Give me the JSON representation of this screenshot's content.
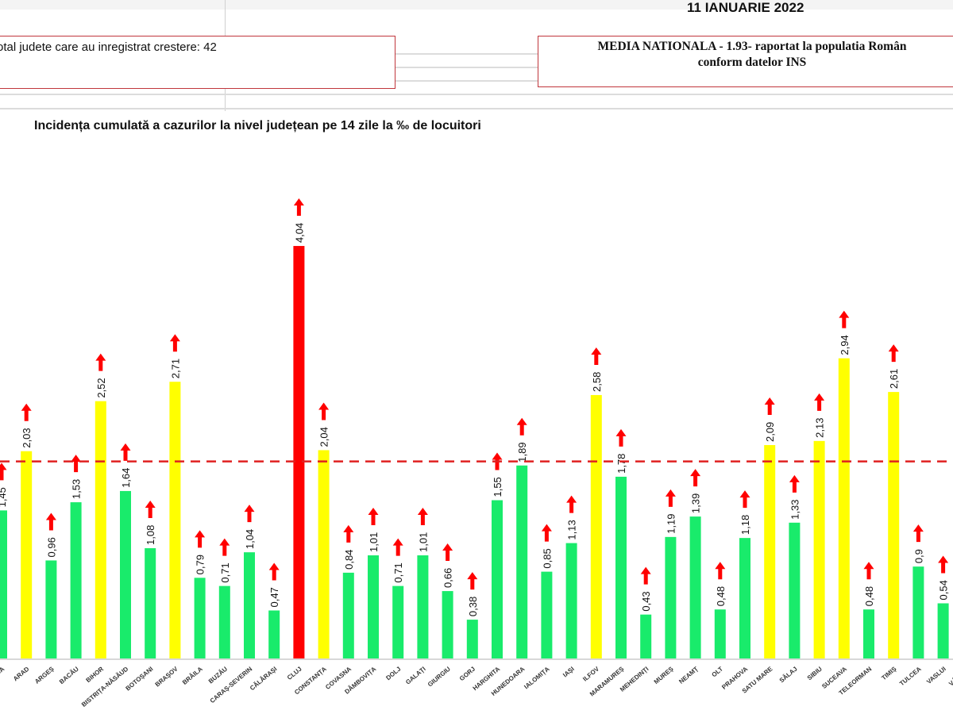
{
  "header": {
    "date": "11 IANUARIE 2022",
    "total_box": "otal judete care au inregistrat crestere: 42",
    "media_box_line1": "MEDIA NATIONALA - 1.93-  raportat la populatia Român",
    "media_box_line2": "conform datelor INS"
  },
  "colors": {
    "below_average": "#19eb6b",
    "above_average": "#ffff00",
    "maximum": "#ff0000",
    "arrow": "#ff0000",
    "average_line": "#e02020"
  },
  "chart_data": {
    "type": "bar",
    "title": "Incidența cumulată a cazurilor la nivel județean pe 14 zile la ‰ de locuitori",
    "categories": [
      "ALBA",
      "ARAD",
      "ARGEȘ",
      "BACĂU",
      "BIHOR",
      "BISTRIȚA-NĂSĂUD",
      "BOTOȘANI",
      "BRAȘOV",
      "BRĂILA",
      "BUZĂU",
      "CARAȘ-SEVERIN",
      "CĂLĂRAȘI",
      "CLUJ",
      "CONSTANȚA",
      "COVASNA",
      "DÂMBOVIȚA",
      "DOLJ",
      "GALAȚI",
      "GIURGIU",
      "GORJ",
      "HARGHITA",
      "HUNEDOARA",
      "IALOMIȚA",
      "IAȘI",
      "ILFOV",
      "MARAMUREȘ",
      "MEHEDINȚI",
      "MUREȘ",
      "NEAMȚ",
      "OLT",
      "PRAHOVA",
      "SATU MARE",
      "SĂLAJ",
      "SIBIU",
      "SUCEAVA",
      "TELEORMAN",
      "TIMIȘ",
      "TULCEA",
      "VASLUI",
      "VÂLCEA"
    ],
    "values": [
      1.45,
      2.03,
      0.96,
      1.53,
      2.52,
      1.64,
      1.08,
      2.71,
      0.79,
      0.71,
      1.04,
      0.47,
      4.04,
      2.04,
      0.84,
      1.01,
      0.71,
      1.01,
      0.66,
      0.38,
      1.55,
      1.89,
      0.85,
      1.13,
      2.58,
      1.78,
      0.43,
      1.19,
      1.39,
      0.48,
      1.18,
      2.09,
      1.33,
      2.13,
      2.94,
      0.48,
      2.61,
      0.9,
      0.54,
      null
    ],
    "value_labels": [
      "1,45",
      "2,03",
      "0,96",
      "1,53",
      "2,52",
      "1,64",
      "1,08",
      "2,71",
      "0,79",
      "0,71",
      "1,04",
      "0,47",
      "4,04",
      "2,04",
      "0,84",
      "1,01",
      "0,71",
      "1,01",
      "0,66",
      "0,38",
      "1,55",
      "1,89",
      "0,85",
      "1,13",
      "2,58",
      "1,78",
      "0,43",
      "1,19",
      "1,39",
      "0,48",
      "1,18",
      "2,09",
      "1,33",
      "2,13",
      "2,94",
      "0,48",
      "2,61",
      "0,9",
      "0,54",
      ""
    ],
    "trend": "up",
    "reference_line": {
      "value": 1.93,
      "style": "dashed"
    },
    "ylim": [
      0,
      4.04
    ],
    "grid": false,
    "xlabel": "",
    "ylabel": ""
  }
}
